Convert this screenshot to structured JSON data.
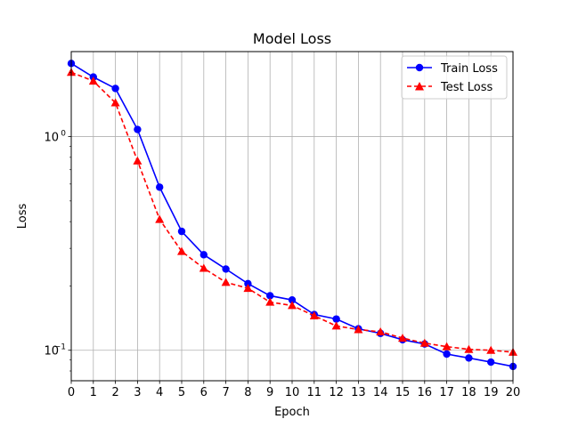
{
  "chart_data": {
    "type": "line",
    "title": "Model Loss",
    "xlabel": "Epoch",
    "ylabel": "Loss",
    "yscale": "log",
    "xlim": [
      0,
      20
    ],
    "ylim": [
      0.072,
      2.5
    ],
    "x_ticks": [
      0,
      1,
      2,
      3,
      4,
      5,
      6,
      7,
      8,
      9,
      10,
      11,
      12,
      13,
      14,
      15,
      16,
      17,
      18,
      19,
      20
    ],
    "y_ticks": [
      {
        "value": 1.0,
        "base": "10",
        "exp": "0"
      },
      {
        "value": 0.1,
        "base": "10",
        "exp": "−1"
      }
    ],
    "grid": true,
    "legend_position": "top-right",
    "x": [
      0,
      1,
      2,
      3,
      4,
      5,
      6,
      7,
      8,
      9,
      10,
      11,
      12,
      13,
      14,
      15,
      16,
      17,
      18,
      19,
      20
    ],
    "series": [
      {
        "name": "Train Loss",
        "color": "#0000ff",
        "line_style": "solid",
        "marker": "circle",
        "values": [
          2.2,
          1.9,
          1.68,
          1.08,
          0.58,
          0.36,
          0.28,
          0.24,
          0.205,
          0.18,
          0.172,
          0.147,
          0.14,
          0.126,
          0.12,
          0.112,
          0.107,
          0.096,
          0.092,
          0.088,
          0.084
        ]
      },
      {
        "name": "Test Loss",
        "color": "#ff0000",
        "line_style": "dashed",
        "marker": "triangle",
        "values": [
          2.0,
          1.82,
          1.44,
          0.77,
          0.41,
          0.29,
          0.242,
          0.208,
          0.195,
          0.168,
          0.162,
          0.145,
          0.13,
          0.125,
          0.122,
          0.114,
          0.108,
          0.104,
          0.101,
          0.1,
          0.098
        ]
      }
    ]
  }
}
